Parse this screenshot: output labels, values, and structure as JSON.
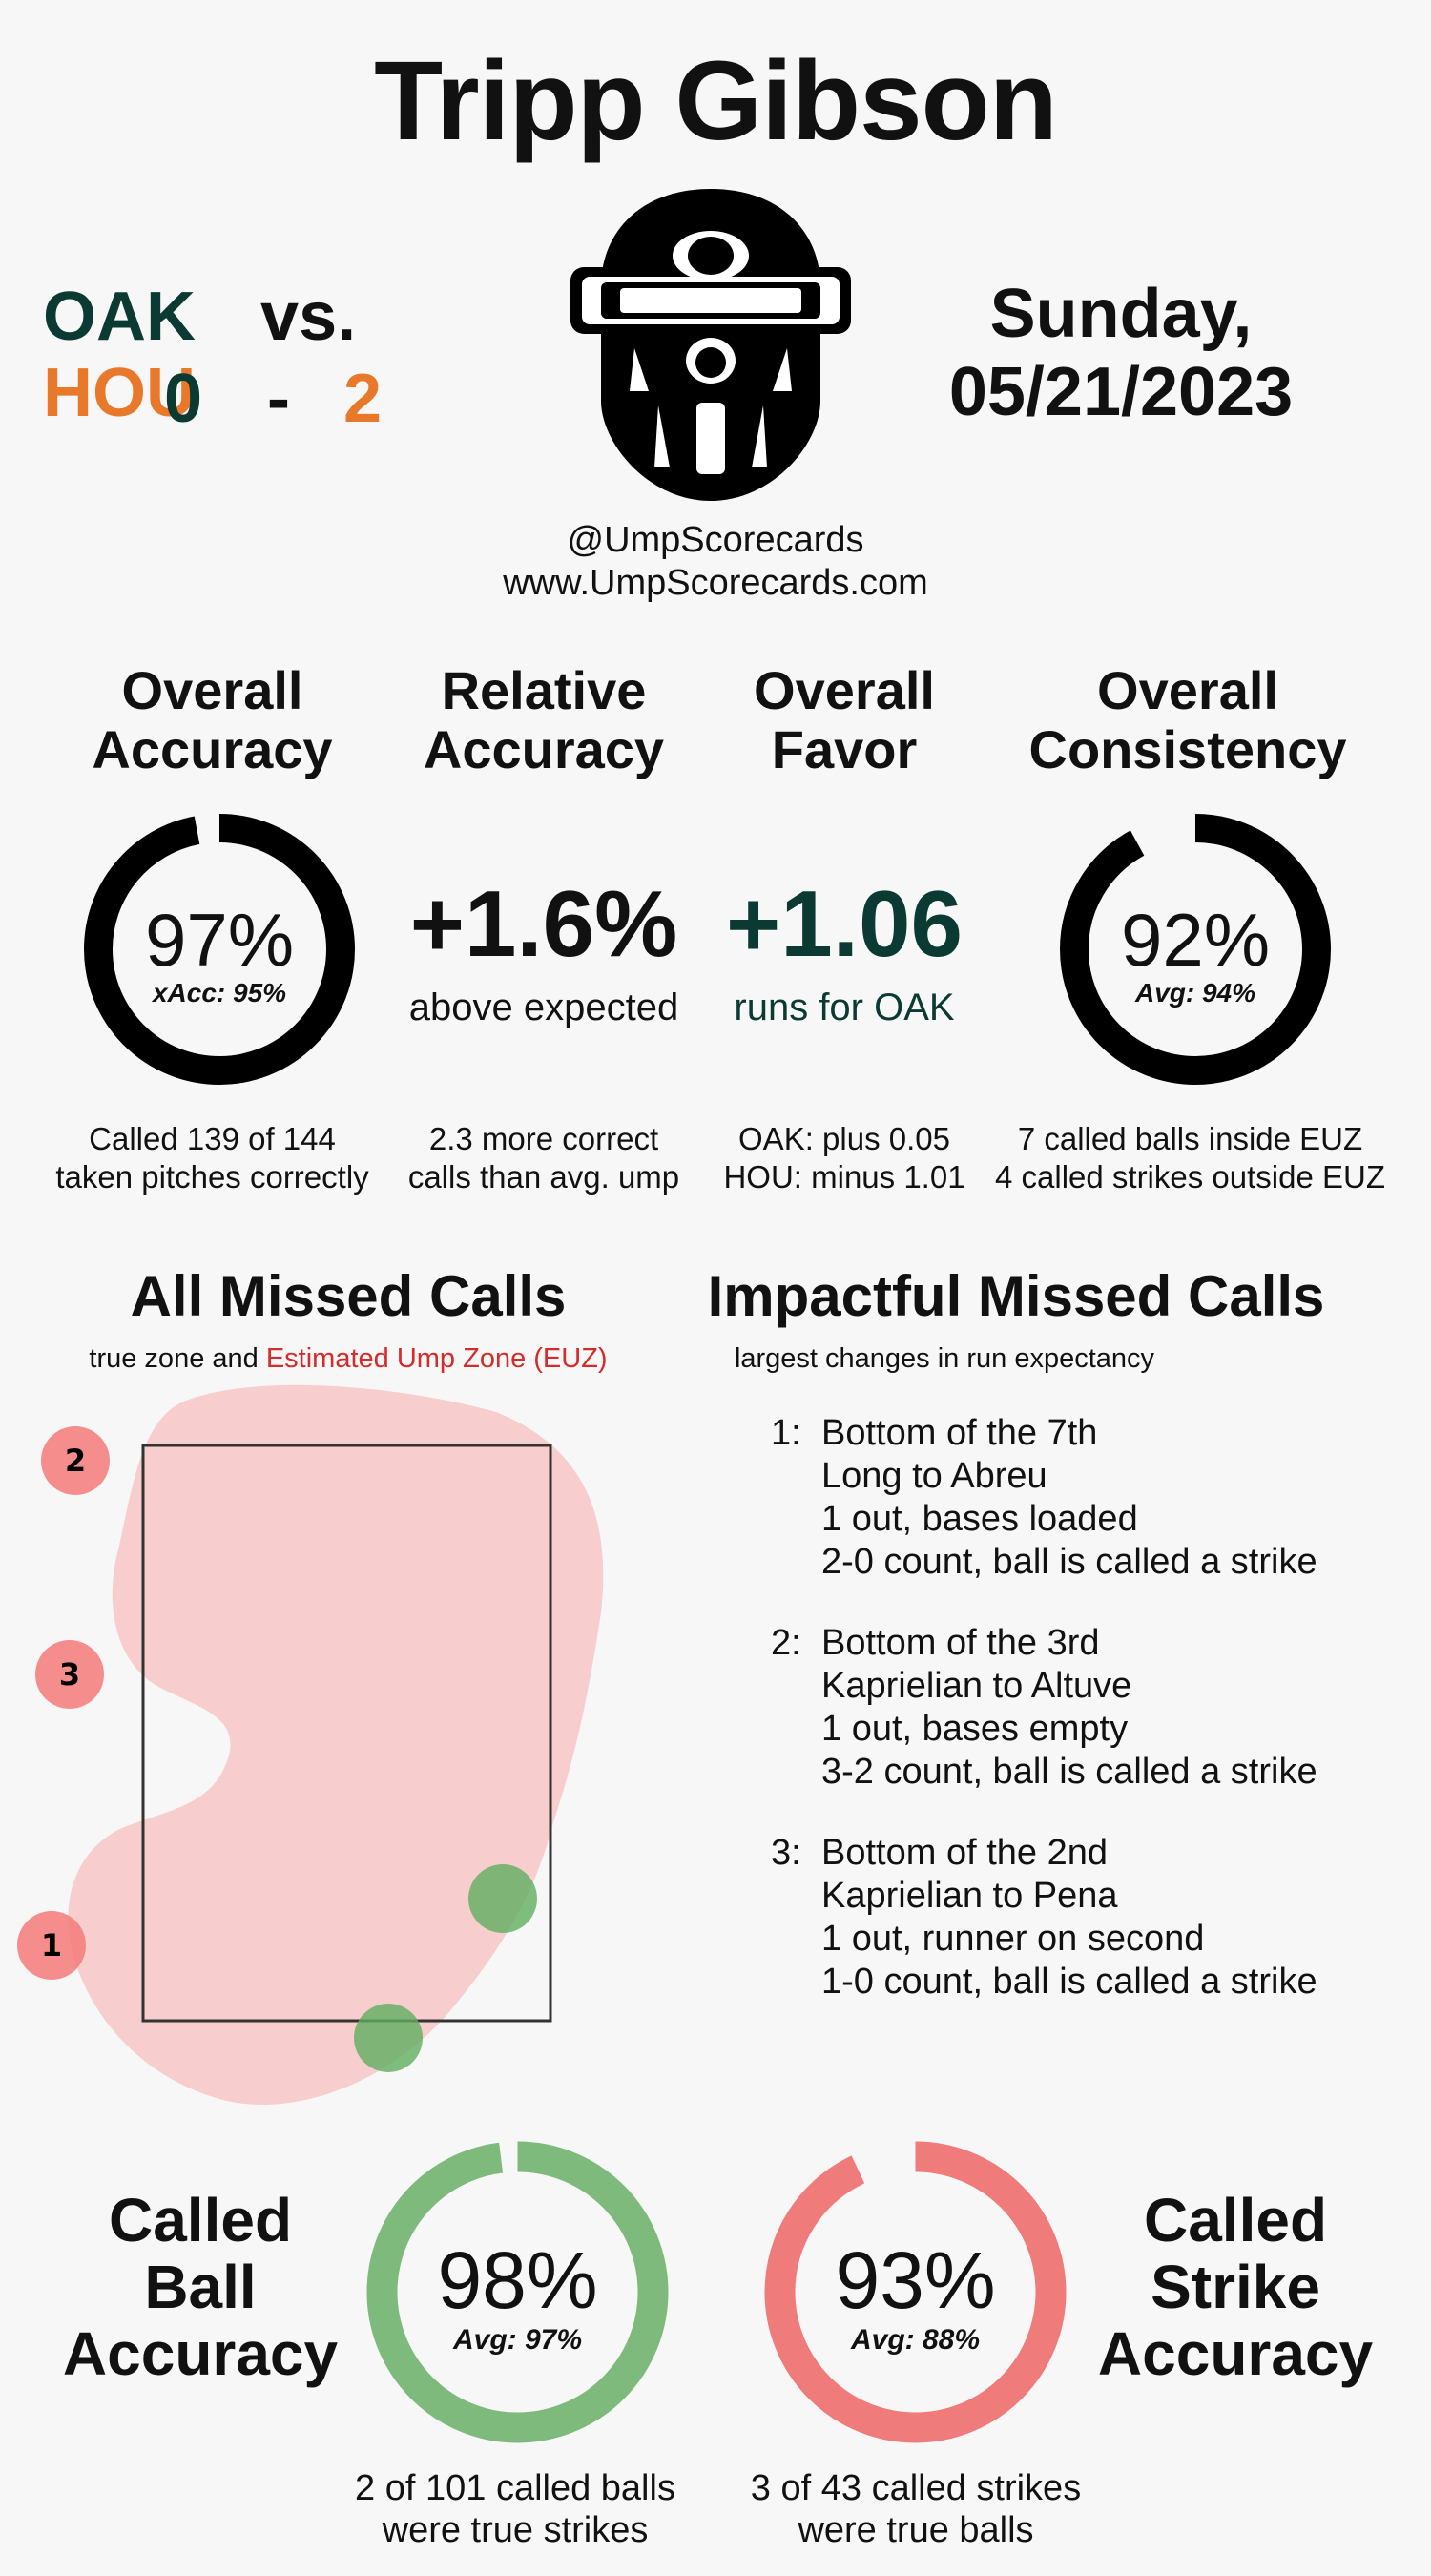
{
  "umpire": "Tripp Gibson",
  "matchup": {
    "away_team": "OAK",
    "vs": "vs.",
    "home_team": "HOU",
    "away_score": "0",
    "separator": "-",
    "home_score": "2"
  },
  "date": {
    "weekday": "Sunday,",
    "date": "05/21/2023"
  },
  "credits": {
    "handle": "@UmpScorecards",
    "site": "www.UmpScorecards.com"
  },
  "metrics": {
    "overall_accuracy": {
      "title_line1": "Overall",
      "title_line2": "Accuracy",
      "value": "97%",
      "sub": "xAcc: 95%",
      "fraction": 0.97,
      "foot_line1": "Called 139 of 144",
      "foot_line2": "taken pitches correctly"
    },
    "relative_accuracy": {
      "title_line1": "Relative",
      "title_line2": "Accuracy",
      "value": "+1.6%",
      "sub": "above expected",
      "foot_line1": "2.3 more correct",
      "foot_line2": "calls than avg. ump"
    },
    "overall_favor": {
      "title_line1": "Overall",
      "title_line2": "Favor",
      "value": "+1.06",
      "sub": "runs for OAK",
      "foot_line1": "OAK: plus 0.05",
      "foot_line2": "HOU: minus 1.01"
    },
    "overall_consistency": {
      "title_line1": "Overall",
      "title_line2": "Consistency",
      "value": "92%",
      "sub": "Avg: 94%",
      "fraction": 0.92,
      "foot_line1": "7 called balls inside EUZ",
      "foot_line2": "4 called strikes outside EUZ"
    }
  },
  "missed_calls": {
    "title": "All Missed Calls",
    "sub_prefix": "true zone and",
    "sub_euz": "Estimated Ump Zone (EUZ)",
    "points": [
      {
        "label": "2",
        "color": "#f47a7a"
      },
      {
        "label": "3",
        "color": "#f47a7a"
      },
      {
        "label": "1",
        "color": "#f47a7a"
      }
    ]
  },
  "impactful": {
    "title": "Impactful Missed Calls",
    "sub": "largest changes in run expectancy",
    "calls": [
      {
        "num": "1:",
        "lines": [
          "Bottom of the 7th",
          "Long to Abreu",
          "1 out, bases loaded",
          "2-0 count, ball is called a strike"
        ]
      },
      {
        "num": "2:",
        "lines": [
          "Bottom of the 3rd",
          "Kaprielian to Altuve",
          "1 out, bases empty",
          "3-2 count, ball is called a strike"
        ]
      },
      {
        "num": "3:",
        "lines": [
          "Bottom of the 2nd",
          "Kaprielian to Pena",
          "1 out, runner on second",
          "1-0 count, ball is called a strike"
        ]
      }
    ]
  },
  "called_ball": {
    "title_line1": "Called",
    "title_line2": "Ball",
    "title_line3": "Accuracy",
    "value": "98%",
    "sub": "Avg: 97%",
    "fraction": 0.98,
    "color": "#7fba7d",
    "foot_line1": "2 of 101 called balls",
    "foot_line2": "were true strikes"
  },
  "called_strike": {
    "title_line1": "Called",
    "title_line2": "Strike",
    "title_line3": "Accuracy",
    "value": "93%",
    "sub": "Avg: 88%",
    "fraction": 0.93,
    "color": "#ef7b7b",
    "foot_line1": "3 of 43 called strikes",
    "foot_line2": "were true balls"
  },
  "colors": {
    "oak": "#0b3a33",
    "hou": "#e8792a",
    "euz": "#d42b2b",
    "ring": "#000000"
  },
  "icons": {
    "mask": "umpire-mask-icon"
  }
}
